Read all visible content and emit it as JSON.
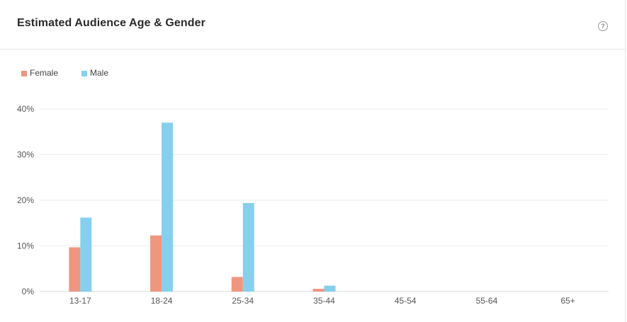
{
  "header": {
    "title": "Estimated Audience Age & Gender",
    "help_icon": "question-circle-icon",
    "help_glyph": "?"
  },
  "chart_data": {
    "type": "bar",
    "categories": [
      "13-17",
      "18-24",
      "25-34",
      "35-44",
      "45-54",
      "55-64",
      "65+"
    ],
    "series": [
      {
        "name": "Female",
        "color": "#ef9680",
        "values": [
          9.7,
          12.3,
          3.2,
          0.6,
          0,
          0,
          0
        ]
      },
      {
        "name": "Male",
        "color": "#86d0ee",
        "values": [
          16.2,
          37.0,
          19.4,
          1.3,
          0,
          0,
          0
        ]
      }
    ],
    "yticks": [
      "0%",
      "10%",
      "20%",
      "30%",
      "40%"
    ],
    "ylim": [
      0,
      40
    ],
    "legend_position": "top-left",
    "grid": true
  }
}
